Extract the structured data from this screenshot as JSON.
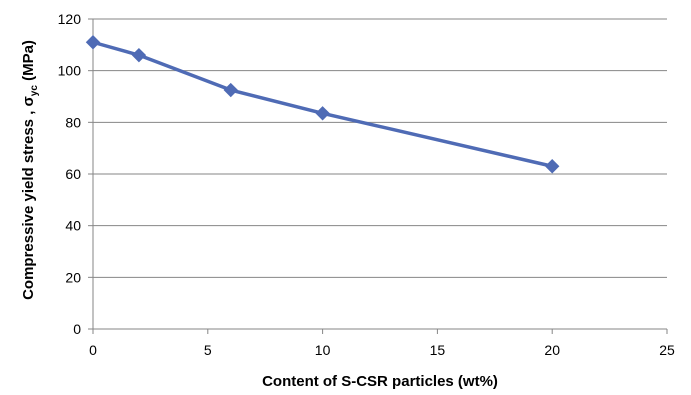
{
  "chart_data": {
    "type": "line",
    "title": "",
    "xlabel": "Content of S-CSR particles (wt%)",
    "ylabel": {
      "main": "Compressive yield stress , σ",
      "subscript": "yc",
      "unit": " (MPa)"
    },
    "xlim": [
      0,
      25
    ],
    "ylim": [
      0,
      120
    ],
    "x_ticks": [
      0,
      5,
      10,
      15,
      20,
      25
    ],
    "y_ticks": [
      0,
      20,
      40,
      60,
      80,
      100,
      120
    ],
    "grid": "horizontal",
    "legend": "none",
    "series": [
      {
        "x": [
          0,
          2,
          6,
          10,
          20
        ],
        "y": [
          111,
          106,
          92.5,
          83.5,
          63
        ],
        "color": "#4F6BB5",
        "marker": "diamond"
      }
    ]
  }
}
